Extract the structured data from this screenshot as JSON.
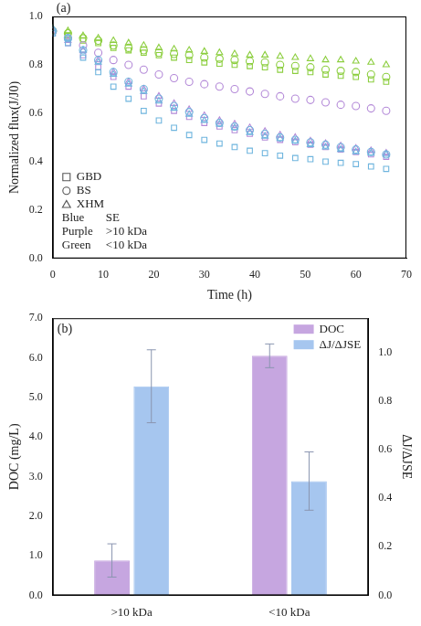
{
  "chart_data": [
    {
      "type": "scatter",
      "annotation": "(a)",
      "x_label": "Time (h)",
      "y_label": "Normalized flux(J/J0)",
      "xlim": [
        0,
        70
      ],
      "xticks": [
        0,
        10,
        20,
        30,
        40,
        50,
        60,
        70
      ],
      "ylim": [
        0,
        1
      ],
      "yticks": [
        {
          "value": 0,
          "label": "0.0"
        },
        0.2,
        0.4,
        0.6,
        0.8,
        {
          "value": 1,
          "label": "1.0"
        }
      ],
      "grid": false,
      "legend": "lower left",
      "marker_key": [
        {
          "label": "GBD",
          "marker": "square"
        },
        {
          "label": "BS",
          "marker": "circle"
        },
        {
          "label": "XHM",
          "marker": "triangle"
        }
      ],
      "color_key": [
        {
          "label": "Blue",
          "meaning": "SE",
          "color": "#6fb5de"
        },
        {
          "label": "Purple",
          "meaning": ">10 kDa",
          "color": "#b48ad8"
        },
        {
          "label": "Green",
          "meaning": "<10 kDa",
          "color": "#8cce3f"
        }
      ],
      "x": [
        0,
        3,
        6,
        9,
        12,
        15,
        18,
        21,
        24,
        27,
        30,
        33,
        36,
        39,
        42,
        45,
        48,
        51,
        54,
        57,
        60,
        63,
        66
      ],
      "series": [
        {
          "source": "GBD",
          "fraction": "SE",
          "values": [
            0.93,
            0.89,
            0.83,
            0.77,
            0.71,
            0.66,
            0.61,
            0.57,
            0.54,
            0.51,
            0.49,
            0.475,
            0.46,
            0.445,
            0.435,
            0.425,
            0.415,
            0.41,
            0.4,
            0.395,
            0.39,
            0.38,
            0.37
          ]
        },
        {
          "source": "BS",
          "fraction": "SE",
          "values": [
            0.94,
            0.91,
            0.86,
            0.82,
            0.77,
            0.73,
            0.7,
            0.66,
            0.63,
            0.605,
            0.58,
            0.56,
            0.545,
            0.53,
            0.515,
            0.5,
            0.49,
            0.48,
            0.47,
            0.46,
            0.45,
            0.44,
            0.43
          ]
        },
        {
          "source": "XHM",
          "fraction": "SE",
          "values": [
            0.95,
            0.91,
            0.86,
            0.81,
            0.76,
            0.72,
            0.69,
            0.65,
            0.62,
            0.595,
            0.57,
            0.555,
            0.54,
            0.52,
            0.505,
            0.495,
            0.485,
            0.47,
            0.46,
            0.45,
            0.44,
            0.435,
            0.43
          ]
        },
        {
          "source": "GBD",
          "fraction": ">10 kDa",
          "values": [
            0.93,
            0.89,
            0.84,
            0.79,
            0.75,
            0.71,
            0.67,
            0.64,
            0.61,
            0.585,
            0.56,
            0.545,
            0.53,
            0.515,
            0.5,
            0.49,
            0.48,
            0.47,
            0.46,
            0.45,
            0.44,
            0.43,
            0.42
          ]
        },
        {
          "source": "BS",
          "fraction": ">10 kDa",
          "values": [
            0.94,
            0.91,
            0.88,
            0.85,
            0.82,
            0.8,
            0.78,
            0.76,
            0.745,
            0.73,
            0.72,
            0.71,
            0.7,
            0.69,
            0.68,
            0.67,
            0.66,
            0.655,
            0.645,
            0.635,
            0.63,
            0.62,
            0.61
          ]
        },
        {
          "source": "XHM",
          "fraction": ">10 kDa",
          "values": [
            0.94,
            0.9,
            0.86,
            0.82,
            0.77,
            0.73,
            0.7,
            0.67,
            0.64,
            0.615,
            0.59,
            0.57,
            0.555,
            0.54,
            0.525,
            0.51,
            0.5,
            0.485,
            0.475,
            0.465,
            0.455,
            0.445,
            0.435
          ]
        },
        {
          "source": "GBD",
          "fraction": "<10 kDa",
          "values": [
            0.94,
            0.92,
            0.9,
            0.89,
            0.87,
            0.86,
            0.85,
            0.84,
            0.83,
            0.82,
            0.81,
            0.805,
            0.8,
            0.795,
            0.79,
            0.78,
            0.775,
            0.77,
            0.76,
            0.755,
            0.75,
            0.74,
            0.73
          ]
        },
        {
          "source": "BS",
          "fraction": "<10 kDa",
          "values": [
            0.94,
            0.93,
            0.91,
            0.9,
            0.88,
            0.87,
            0.86,
            0.85,
            0.845,
            0.84,
            0.83,
            0.825,
            0.82,
            0.815,
            0.81,
            0.8,
            0.795,
            0.79,
            0.78,
            0.775,
            0.77,
            0.76,
            0.75
          ]
        },
        {
          "source": "XHM",
          "fraction": "<10 kDa",
          "values": [
            0.95,
            0.94,
            0.92,
            0.91,
            0.9,
            0.89,
            0.88,
            0.87,
            0.865,
            0.86,
            0.855,
            0.85,
            0.845,
            0.84,
            0.84,
            0.835,
            0.83,
            0.825,
            0.82,
            0.82,
            0.815,
            0.81,
            0.8
          ]
        }
      ]
    },
    {
      "type": "bar",
      "annotation": "(b)",
      "categories": [
        ">10 kDa",
        "<10 kDa"
      ],
      "y_label": "DOC (mg/L)",
      "y2_label": "ΔJ/ΔJSE",
      "ylim": [
        0,
        7
      ],
      "yticks": [
        {
          "value": 0,
          "label": "0.0"
        },
        {
          "value": 1,
          "label": "1.0"
        },
        {
          "value": 2,
          "label": "2.0"
        },
        {
          "value": 3,
          "label": "3.0"
        },
        {
          "value": 4,
          "label": "4.0"
        },
        {
          "value": 5,
          "label": "5.0"
        },
        {
          "value": 6,
          "label": "6.0"
        },
        {
          "value": 7,
          "label": "7.0"
        }
      ],
      "y2lim": [
        0,
        1.14
      ],
      "y2ticks": [
        {
          "value": 0,
          "label": "0.0"
        },
        0.2,
        0.4,
        0.6,
        0.8,
        {
          "value": 1,
          "label": "1.0"
        }
      ],
      "grid": false,
      "legend": "upper right",
      "series": [
        {
          "name": "DOC",
          "color": "#c6a6e0",
          "values": [
            0.88,
            6.05
          ],
          "errors": [
            0.42,
            0.3
          ]
        },
        {
          "name": "ΔJ/ΔJSE",
          "color": "#a6c6ef",
          "values": [
            0.86,
            0.47
          ],
          "errors": [
            0.15,
            0.12
          ],
          "axis": "y2"
        }
      ]
    }
  ]
}
